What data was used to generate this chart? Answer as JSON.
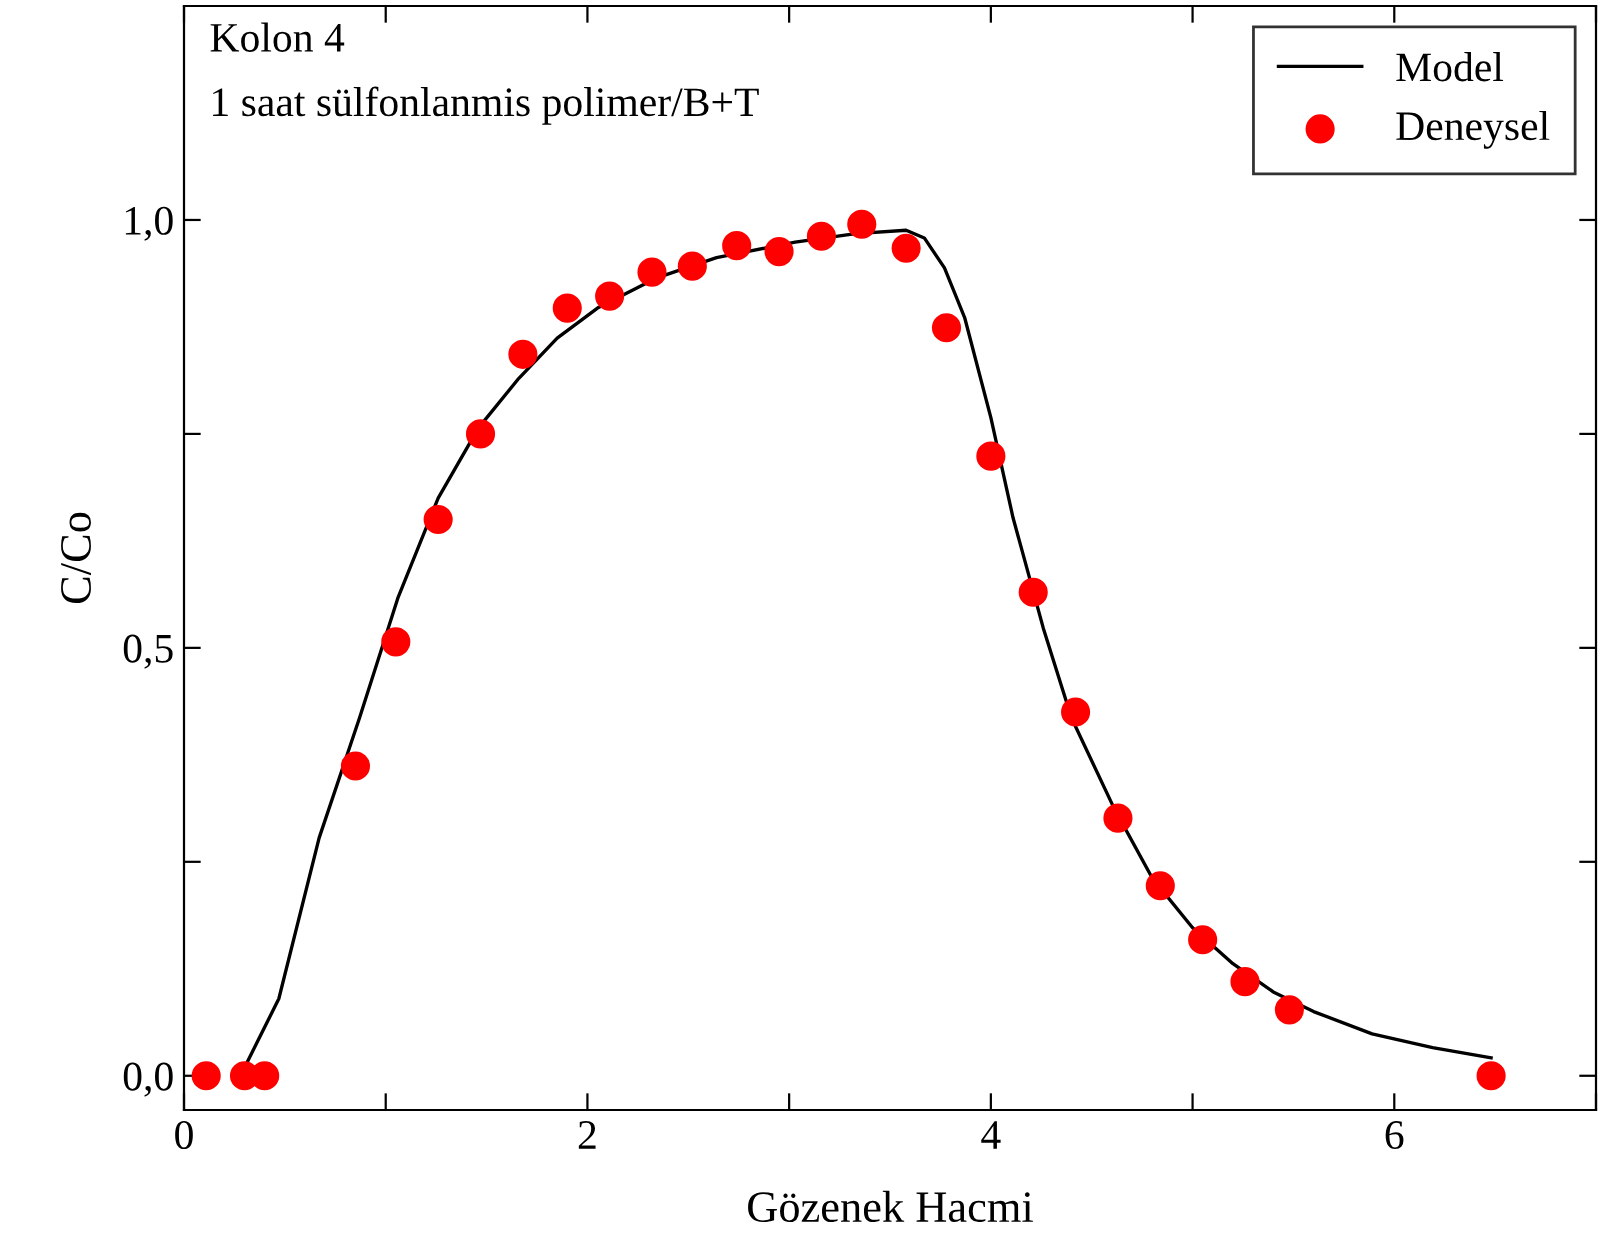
{
  "chart_data": {
    "type": "line",
    "xlabel": "Gözenek Hacmi",
    "ylabel": "C/Co",
    "annotations": [
      "Kolon 4",
      "1 saat sülfonlanmis polimer/B+T"
    ],
    "xlim": [
      0,
      7
    ],
    "ylim": [
      -0.04,
      1.25
    ],
    "xticks": [
      0,
      {
        "value": 1,
        "label": null
      },
      2,
      {
        "value": 3,
        "label": null
      },
      4,
      {
        "value": 5,
        "label": null
      },
      6,
      {
        "value": 7,
        "label": null
      }
    ],
    "yticks": [
      {
        "value": 0,
        "label": "0,0"
      },
      {
        "value": 0.25,
        "label": null
      },
      {
        "value": 0.5,
        "label": "0,5"
      },
      {
        "value": 0.75,
        "label": null
      },
      {
        "value": 1.0,
        "label": "1,0"
      }
    ],
    "grid": false,
    "legend": "top right",
    "series": [
      {
        "name": "Model",
        "color": "#000000",
        "marker": "none",
        "line_style": "solid",
        "x": [
          0.28,
          0.47,
          0.67,
          0.87,
          1.06,
          1.26,
          1.46,
          1.66,
          1.85,
          2.05,
          2.34,
          2.64,
          3.03,
          3.33,
          3.58,
          3.67,
          3.77,
          3.87,
          4.0,
          4.11,
          4.26,
          4.4,
          4.61,
          4.8,
          5.0,
          5.2,
          5.4,
          5.6,
          5.89,
          6.19,
          6.48
        ],
        "values": [
          0,
          0.09,
          0.278,
          0.418,
          0.558,
          0.675,
          0.757,
          0.815,
          0.862,
          0.897,
          0.932,
          0.956,
          0.974,
          0.984,
          0.988,
          0.979,
          0.944,
          0.886,
          0.769,
          0.652,
          0.523,
          0.418,
          0.313,
          0.231,
          0.173,
          0.131,
          0.098,
          0.075,
          0.049,
          0.033,
          0.021
        ]
      },
      {
        "name": "Deneysel",
        "type": "scatter",
        "color": "#ff0000",
        "marker": "circle",
        "x": [
          0.11,
          0.3,
          0.4,
          0.85,
          1.05,
          1.26,
          1.47,
          1.68,
          1.9,
          2.11,
          2.32,
          2.52,
          2.74,
          2.95,
          3.16,
          3.36,
          3.58,
          3.78,
          4.0,
          4.21,
          4.42,
          4.63,
          4.84,
          5.05,
          5.26,
          5.48,
          6.48
        ],
        "values": [
          0,
          0,
          0,
          0.362,
          0.507,
          0.65,
          0.75,
          0.843,
          0.897,
          0.911,
          0.939,
          0.946,
          0.97,
          0.963,
          0.981,
          0.995,
          0.967,
          0.874,
          0.724,
          0.565,
          0.425,
          0.301,
          0.222,
          0.159,
          0.11,
          0.077,
          0
        ]
      }
    ]
  }
}
